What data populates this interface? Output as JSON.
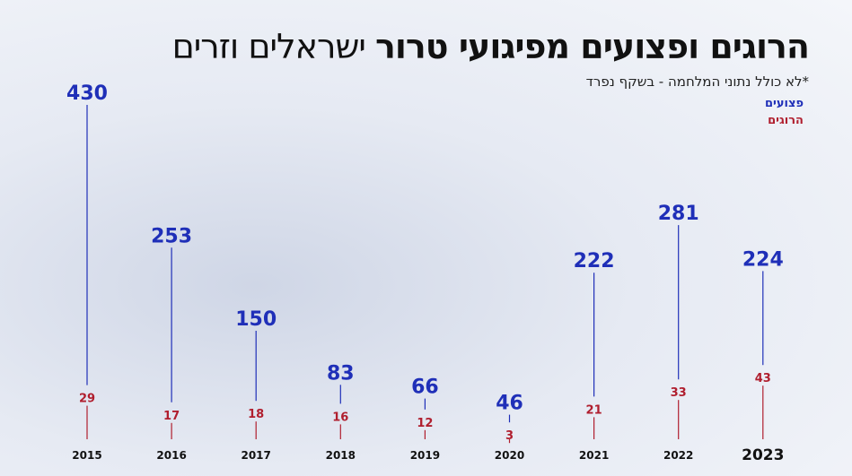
{
  "chart_data": {
    "type": "lollipop",
    "title_bold": "הרוגים ופצועים מפיגועי טרור",
    "title_regular": "ישראלים וזרים",
    "subtitle": "*לא כולל נתוני המלחמה - בשקף נפרד",
    "categories": [
      "2015",
      "2016",
      "2017",
      "2018",
      "2019",
      "2020",
      "2021",
      "2022",
      "2023"
    ],
    "highlight_index": 8,
    "legend": "top-right",
    "series": [
      {
        "name": "פצועים",
        "color": "#1f2fb8",
        "values": [
          430,
          253,
          150,
          83,
          66,
          46,
          222,
          281,
          224
        ]
      },
      {
        "name": "הרוגים",
        "color": "#b01e2e",
        "values": [
          29,
          17,
          18,
          16,
          12,
          3,
          21,
          33,
          43
        ]
      }
    ]
  }
}
